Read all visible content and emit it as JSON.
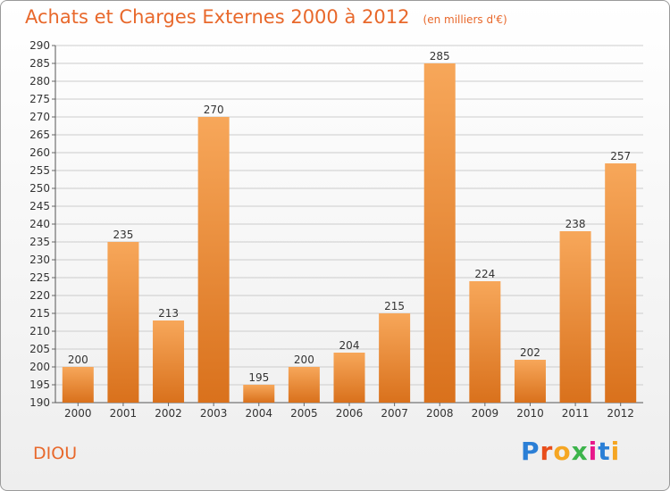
{
  "title": "Achats et Charges Externes 2000 à 2012",
  "unit_label": "(en milliers d'€)",
  "commune": "DIOU",
  "logo": {
    "text": "Proxiti",
    "letters": [
      "P",
      "r",
      "o",
      "x",
      "i",
      "t",
      "i"
    ]
  },
  "colors": {
    "title": "#e8682b",
    "bar_light": "#f7a75a",
    "bar_dark": "#d9711c",
    "grid": "#cccccc"
  },
  "chart_data": {
    "type": "bar",
    "title": "Achats et Charges Externes 2000 à 2012",
    "xlabel": "",
    "ylabel": "",
    "categories": [
      "2000",
      "2001",
      "2002",
      "2003",
      "2004",
      "2005",
      "2006",
      "2007",
      "2008",
      "2009",
      "2010",
      "2011",
      "2012"
    ],
    "values": [
      200,
      235,
      213,
      270,
      195,
      200,
      204,
      215,
      285,
      224,
      202,
      238,
      257
    ],
    "ylim": [
      190,
      290
    ],
    "ytick_step": 5,
    "grid": true,
    "legend": "none"
  }
}
